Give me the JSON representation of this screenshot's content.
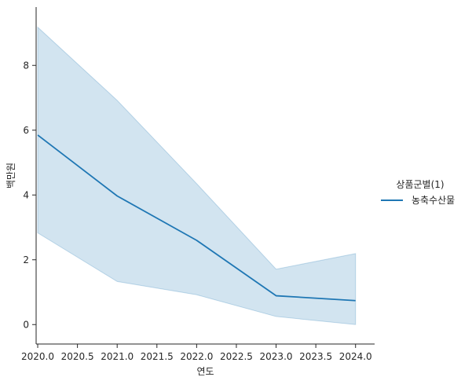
{
  "chart_data": {
    "type": "line",
    "title": "",
    "xlabel": "연도",
    "ylabel": "백만원",
    "x": [
      2020.0,
      2021.0,
      2022.0,
      2023.0,
      2024.0
    ],
    "xticks": [
      2020.0,
      2020.5,
      2021.0,
      2021.5,
      2022.0,
      2022.5,
      2023.0,
      2023.5,
      2024.0
    ],
    "xtick_labels": [
      "2020.0",
      "2020.5",
      "2021.0",
      "2021.5",
      "2022.0",
      "2022.5",
      "2023.0",
      "2023.5",
      "2024.0"
    ],
    "yticks": [
      0,
      2,
      4,
      6,
      8
    ],
    "ytick_labels": [
      "0",
      "2",
      "4",
      "6",
      "8"
    ],
    "xlim": [
      2019.98,
      2024.24
    ],
    "ylim": [
      -0.6,
      9.8
    ],
    "grid": false,
    "legend": {
      "title": "상품군별(1)",
      "placement": "right"
    },
    "series": [
      {
        "name": "농축수산물",
        "color": "#1f77b4",
        "values": [
          5.85,
          3.97,
          2.6,
          0.89,
          0.74
        ],
        "ci_lower": [
          2.83,
          1.33,
          0.92,
          0.25,
          0.0
        ],
        "ci_upper": [
          9.18,
          6.92,
          4.35,
          1.71,
          2.19
        ]
      }
    ]
  }
}
